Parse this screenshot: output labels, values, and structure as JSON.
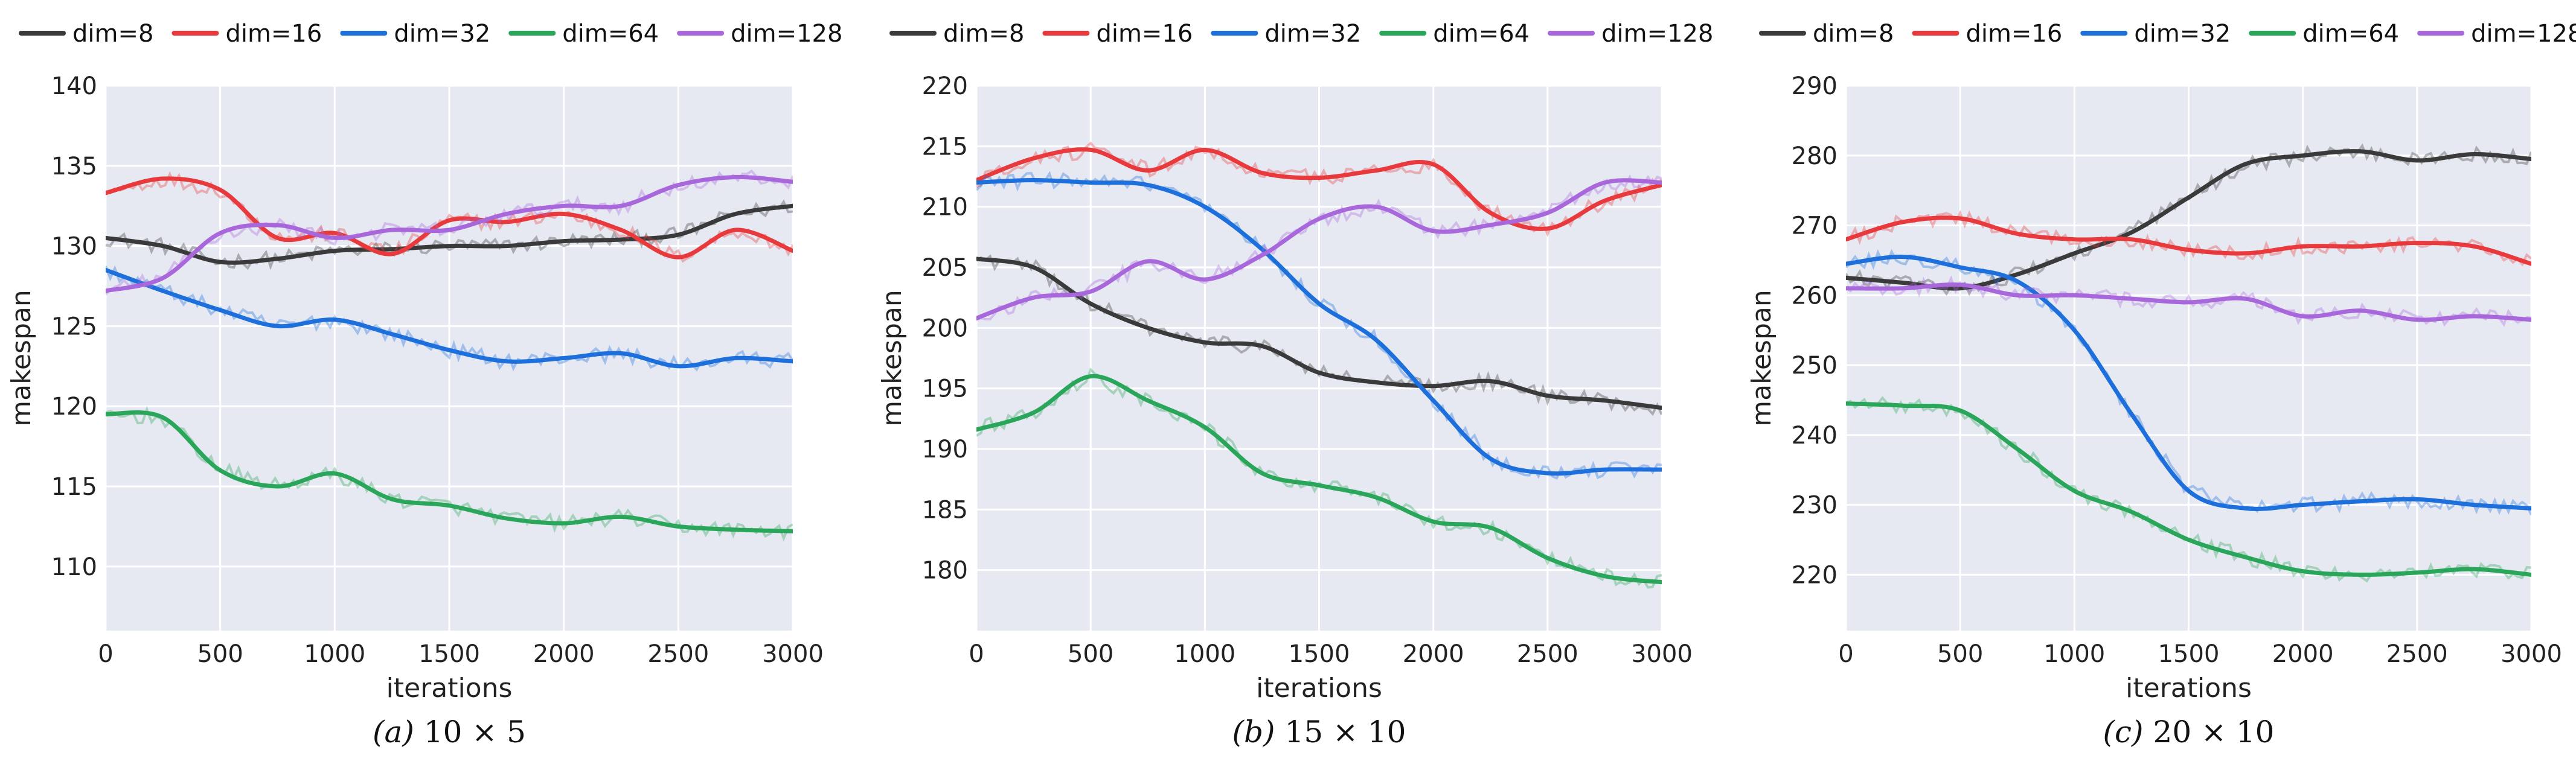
{
  "series_colors": [
    "#3a3a3a",
    "#e8393c",
    "#1d6fdc",
    "#2aa65a",
    "#a868dc"
  ],
  "chart_data": [
    {
      "type": "line",
      "caption_prefix": "(a)",
      "caption": "10 × 5",
      "xlabel": "iterations",
      "ylabel": "makespan",
      "xlim": [
        0,
        3000
      ],
      "ylim": [
        106,
        140
      ],
      "xticks": [
        0,
        500,
        1000,
        1500,
        2000,
        2500,
        3000
      ],
      "yticks": [
        110,
        115,
        120,
        125,
        130,
        135,
        140
      ],
      "grid": true,
      "legend": "top",
      "x": [
        0,
        250,
        500,
        750,
        1000,
        1250,
        1500,
        1750,
        2000,
        2250,
        2500,
        2750,
        3000
      ],
      "series": [
        {
          "name": "dim=8",
          "values": [
            130.5,
            130,
            129,
            129.2,
            129.7,
            129.8,
            130,
            130,
            130.3,
            130.4,
            130.7,
            132,
            132.5
          ]
        },
        {
          "name": "dim=16",
          "values": [
            133.3,
            134.2,
            133.5,
            130.5,
            130.8,
            129.5,
            131.6,
            131.5,
            132,
            131,
            129.3,
            131,
            129.7
          ]
        },
        {
          "name": "dim=32",
          "values": [
            128.5,
            127.2,
            126,
            125,
            125.4,
            124.5,
            123.5,
            122.8,
            123,
            123.3,
            122.5,
            123,
            122.8
          ]
        },
        {
          "name": "dim=64",
          "values": [
            119.5,
            119.3,
            116,
            115,
            115.8,
            114.2,
            113.8,
            113,
            112.7,
            113.1,
            112.5,
            112.3,
            112.2
          ]
        },
        {
          "name": "dim=128",
          "values": [
            127.2,
            128,
            130.8,
            131.3,
            130.5,
            131,
            131,
            132,
            132.5,
            132.5,
            133.8,
            134.3,
            134
          ]
        }
      ]
    },
    {
      "type": "line",
      "caption_prefix": "(b)",
      "caption": "15 × 10",
      "xlabel": "iterations",
      "ylabel": "makespan",
      "xlim": [
        0,
        3000
      ],
      "ylim": [
        175,
        220
      ],
      "xticks": [
        0,
        500,
        1000,
        1500,
        2000,
        2500,
        3000
      ],
      "yticks": [
        180,
        185,
        190,
        195,
        200,
        205,
        210,
        215,
        220
      ],
      "grid": true,
      "legend": "top",
      "x": [
        0,
        250,
        500,
        750,
        1000,
        1250,
        1500,
        1750,
        2000,
        2250,
        2500,
        2750,
        3000
      ],
      "series": [
        {
          "name": "dim=8",
          "values": [
            205.7,
            205,
            202,
            200,
            198.8,
            198.5,
            196.3,
            195.5,
            195.2,
            195.6,
            194.4,
            194,
            193.4
          ]
        },
        {
          "name": "dim=16",
          "values": [
            212.2,
            214,
            214.7,
            213,
            214.7,
            212.8,
            212.4,
            213,
            213.5,
            209.5,
            208.2,
            210.5,
            211.8
          ]
        },
        {
          "name": "dim=32",
          "values": [
            212,
            212.2,
            212,
            211.8,
            210,
            206.5,
            202,
            199,
            194,
            189.2,
            188,
            188.3,
            188.3
          ]
        },
        {
          "name": "dim=64",
          "values": [
            191.6,
            193,
            196,
            194,
            191.8,
            188,
            187,
            186,
            184,
            183.5,
            181,
            179.5,
            179
          ]
        },
        {
          "name": "dim=128",
          "values": [
            200.8,
            202.5,
            203,
            205.5,
            204,
            206,
            209,
            210,
            208,
            208.5,
            209.5,
            212,
            212
          ]
        }
      ]
    },
    {
      "type": "line",
      "caption_prefix": "(c)",
      "caption": "20 × 10",
      "xlabel": "iterations",
      "ylabel": "makespan",
      "xlim": [
        0,
        3000
      ],
      "ylim": [
        212,
        290
      ],
      "xticks": [
        0,
        500,
        1000,
        1500,
        2000,
        2500,
        3000
      ],
      "yticks": [
        220,
        230,
        240,
        250,
        260,
        270,
        280,
        290
      ],
      "grid": true,
      "legend": "top",
      "x": [
        0,
        250,
        500,
        750,
        1000,
        1250,
        1500,
        1750,
        2000,
        2250,
        2500,
        2750,
        3000
      ],
      "series": [
        {
          "name": "dim=8",
          "values": [
            262.5,
            261.8,
            261,
            263,
            266,
            269,
            274,
            278.8,
            280,
            280.6,
            279.3,
            280.2,
            279.5
          ]
        },
        {
          "name": "dim=16",
          "values": [
            268,
            270.5,
            271,
            268.8,
            268,
            268,
            266.5,
            266,
            267,
            267,
            267.5,
            267,
            264.5
          ]
        },
        {
          "name": "dim=32",
          "values": [
            264.5,
            265.5,
            264,
            262,
            255,
            243,
            232,
            229.5,
            230,
            230.5,
            230.8,
            230,
            229.5
          ]
        },
        {
          "name": "dim=64",
          "values": [
            244.5,
            244.2,
            243.5,
            238,
            232,
            229,
            225,
            222.5,
            220.5,
            220,
            220.3,
            220.8,
            220
          ]
        },
        {
          "name": "dim=128",
          "values": [
            261,
            261,
            261.5,
            260,
            260,
            259.5,
            259,
            259.5,
            257,
            257.8,
            256.5,
            257,
            256.5
          ]
        }
      ]
    }
  ]
}
